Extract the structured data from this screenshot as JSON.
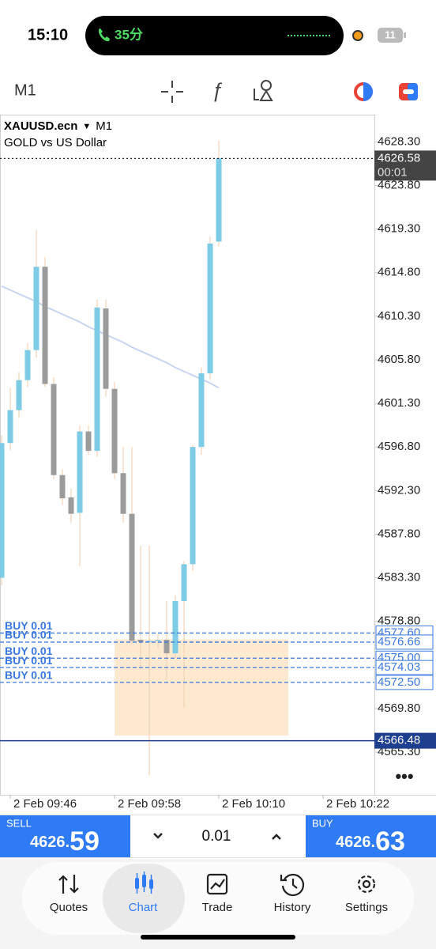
{
  "status_bar": {
    "time": "15:10",
    "call_duration": "35分",
    "battery": "11"
  },
  "toolbar": {
    "timeframe": "M1"
  },
  "chart_data": {
    "type": "candlestick",
    "symbol": "XAUUSD.ecn",
    "timeframe": "M1",
    "description": "GOLD vs US Dollar",
    "categories": [
      null,
      "2 Feb 09:46",
      null,
      null,
      null,
      null,
      null,
      null,
      null,
      null,
      null,
      null,
      null,
      "2 Feb 09:58",
      null,
      null,
      null,
      null,
      null,
      null,
      null,
      null,
      null,
      null,
      null,
      "2 Feb 10:10",
      null,
      null,
      null,
      null,
      null,
      null,
      null,
      null,
      null,
      null,
      null,
      "2 Feb 10:22",
      null,
      null,
      null,
      null,
      null
    ],
    "candles": {
      "open": [
        4583.3,
        4597.2,
        4600.6,
        4603.7,
        4606.8,
        4615.4,
        4603.3,
        4593.9,
        4591.6,
        4590.0,
        4598.4,
        4596.4,
        4611.1,
        4602.8,
        4594.1,
        4589.9,
        4576.9,
        4576.7,
        4576.8,
        4576.9,
        4575.5,
        4580.9,
        4584.7,
        4596.8,
        4604.4,
        4618.0,
        null,
        null,
        null,
        null,
        null,
        null,
        null,
        null,
        null,
        null,
        null,
        null,
        null,
        null,
        null,
        null,
        null
      ],
      "high": [
        4598.0,
        4602.9,
        4604.5,
        4607.5,
        4619.2,
        4616.4,
        4604.0,
        4594.5,
        4592.5,
        4599.0,
        4599.0,
        4612.0,
        4612.0,
        4603.5,
        4596.8,
        4596.8,
        4586.6,
        4586.6,
        4577.5,
        4580.9,
        4581.5,
        4585.0,
        4597.0,
        4605.0,
        4618.5,
        4628.4,
        null,
        null,
        null,
        null,
        null,
        null,
        null,
        null,
        null,
        null,
        null,
        null,
        null,
        null,
        null,
        null,
        null
      ],
      "low": [
        4582.5,
        4596.5,
        4599.8,
        4603.0,
        4606.0,
        4603.0,
        4593.5,
        4590.8,
        4589.0,
        4584.5,
        4596.0,
        4595.8,
        4602.0,
        4593.5,
        4589.0,
        4576.5,
        4573.9,
        4562.9,
        4576.0,
        4572.7,
        4575.0,
        4569.9,
        4584.0,
        4596.0,
        4603.8,
        4617.5,
        null,
        null,
        null,
        null,
        null,
        null,
        null,
        null,
        null,
        null,
        null,
        null,
        null,
        null,
        null,
        null,
        null
      ],
      "close": [
        4597.2,
        4600.6,
        4603.7,
        4606.8,
        4615.4,
        4603.3,
        4593.9,
        4591.5,
        4589.9,
        4598.4,
        4596.4,
        4611.2,
        4602.8,
        4594.1,
        4589.9,
        4576.8,
        4576.7,
        4576.8,
        4576.9,
        4575.5,
        4580.9,
        4584.7,
        4596.8,
        4604.4,
        4617.8,
        4626.6,
        null,
        null,
        null,
        null,
        null,
        null,
        null,
        null,
        null,
        null,
        null,
        null,
        null,
        null,
        null,
        null,
        null
      ],
      "up_color": "#7ecbe6",
      "down_color": "#9b9b9b",
      "wick_color": "#f2d3b4"
    },
    "ma": {
      "color": "#c8d5f0",
      "values": [
        4613.4,
        4613.0,
        4612.6,
        4612.2,
        4611.8,
        4611.3,
        4610.9,
        4610.5,
        4610.1,
        4609.7,
        4609.2,
        4608.8,
        4608.4,
        4608.0,
        4607.6,
        4607.1,
        4606.7,
        4606.3,
        4605.9,
        4605.5,
        4605.0,
        4604.6,
        4604.2,
        4603.8,
        4603.4,
        4602.9,
        null,
        null,
        null,
        null,
        null,
        null,
        null,
        null,
        null,
        null,
        null,
        null,
        null,
        null,
        null,
        null,
        null
      ]
    },
    "ylim": [
      4560.9,
      4631.1
    ],
    "yticks": [
      {
        "value": 4628.3,
        "label": "4628.30"
      },
      {
        "value": 4623.8,
        "label": "4623.80"
      },
      {
        "value": 4619.3,
        "label": "4619.30"
      },
      {
        "value": 4614.8,
        "label": "4614.80"
      },
      {
        "value": 4610.3,
        "label": "4610.30"
      },
      {
        "value": 4605.8,
        "label": "4605.80"
      },
      {
        "value": 4601.3,
        "label": "4601.30"
      },
      {
        "value": 4596.8,
        "label": "4596.80"
      },
      {
        "value": 4592.3,
        "label": "4592.30"
      },
      {
        "value": 4587.8,
        "label": "4587.80"
      },
      {
        "value": 4583.3,
        "label": "4583.30"
      },
      {
        "value": 4578.8,
        "label": "4578.80"
      },
      {
        "value": 4569.8,
        "label": "4569.80"
      },
      {
        "value": 4565.3,
        "label": "4565.30"
      }
    ],
    "last_price": {
      "value": 4626.58,
      "label": "4626.58",
      "timer": "00:01",
      "color": "#444444"
    },
    "bid_line": {
      "value": 4566.48,
      "label": "4566.48",
      "color": "#1d3f8e"
    },
    "order_color": "#3a78e0",
    "orders": [
      {
        "label": "BUY 0.01",
        "price": {
          "value": 4577.6,
          "label": "4577.60"
        }
      },
      {
        "label": "BUY 0.01",
        "price": {
          "value": 4576.66,
          "label": "4576.66"
        }
      },
      {
        "label": "BUY 0.01",
        "price": {
          "value": 4575.0,
          "label": "4575.00"
        }
      },
      {
        "label": "BUY 0.01",
        "price": {
          "value": 4574.03,
          "label": "4574.03"
        }
      },
      {
        "label": "BUY 0.01",
        "price": {
          "value": 4572.5,
          "label": "4572.50"
        }
      }
    ],
    "zone": {
      "top": 4576.95,
      "bottom": 4567.0,
      "start": 13,
      "end": 33,
      "color": "#fde9cf"
    }
  },
  "trade_panel": {
    "sell": {
      "label": "SELL",
      "price_main": "4626.",
      "price_pips": "59"
    },
    "volume": "0.01",
    "buy": {
      "label": "BUY",
      "price_main": "4626.",
      "price_pips": "63"
    }
  },
  "nav": {
    "items": [
      "Quotes",
      "Chart",
      "Trade",
      "History",
      "Settings"
    ]
  }
}
